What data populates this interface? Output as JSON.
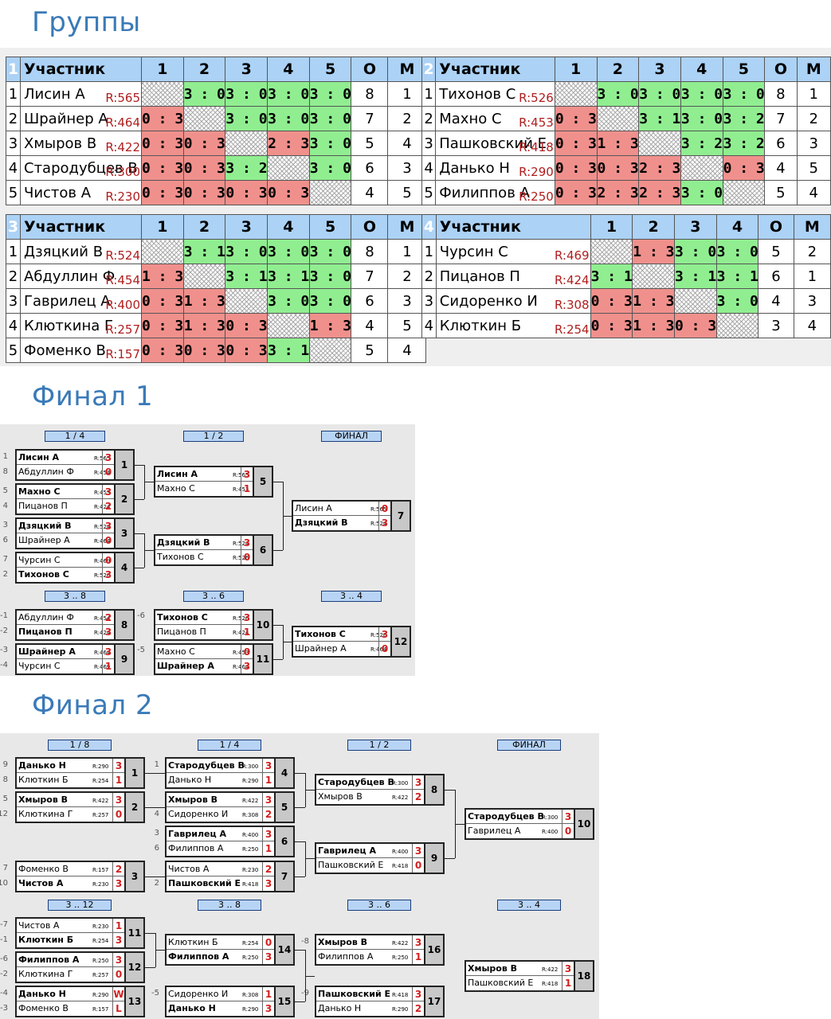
{
  "headings": {
    "groups": "Группы",
    "final1": "Финал 1",
    "final2": "Финал 2"
  },
  "groups": [
    {
      "num": "1",
      "header": [
        "Участник",
        "1",
        "2",
        "3",
        "4",
        "5",
        "О",
        "М"
      ],
      "rows": [
        {
          "n": "1",
          "name": "Лисин А",
          "r": "R:565",
          "cells": [
            "x",
            "3 : 0",
            "3 : 0",
            "3 : 0",
            "3 : 0"
          ],
          "o": "8",
          "m": "1"
        },
        {
          "n": "2",
          "name": "Шрайнер А",
          "r": "R:464",
          "cells": [
            "0 : 3",
            "x",
            "3 : 0",
            "3 : 0",
            "3 : 0"
          ],
          "o": "7",
          "m": "2"
        },
        {
          "n": "3",
          "name": "Хмыров В",
          "r": "R:422",
          "cells": [
            "0 : 3",
            "0 : 3",
            "x",
            "2 : 3",
            "3 : 0"
          ],
          "o": "5",
          "m": "4"
        },
        {
          "n": "4",
          "name": "Стародубцев В",
          "r": "R:300",
          "cells": [
            "0 : 3",
            "0 : 3",
            "3 : 2",
            "x",
            "3 : 0"
          ],
          "o": "6",
          "m": "3"
        },
        {
          "n": "5",
          "name": "Чистов А",
          "r": "R:230",
          "cells": [
            "0 : 3",
            "0 : 3",
            "0 : 3",
            "0 : 3",
            "x"
          ],
          "o": "4",
          "m": "5"
        }
      ]
    },
    {
      "num": "2",
      "header": [
        "Участник",
        "1",
        "2",
        "3",
        "4",
        "5",
        "О",
        "М"
      ],
      "rows": [
        {
          "n": "1",
          "name": "Тихонов С",
          "r": "R:526",
          "cells": [
            "x",
            "3 : 0",
            "3 : 0",
            "3 : 0",
            "3 : 0"
          ],
          "o": "8",
          "m": "1"
        },
        {
          "n": "2",
          "name": "Махно С",
          "r": "R:453",
          "cells": [
            "0 : 3",
            "x",
            "3 : 1",
            "3 : 0",
            "3 : 2"
          ],
          "o": "7",
          "m": "2"
        },
        {
          "n": "3",
          "name": "Пашковский Е",
          "r": "R:418",
          "cells": [
            "0 : 3",
            "1 : 3",
            "x",
            "3 : 2",
            "3 : 2"
          ],
          "o": "6",
          "m": "3"
        },
        {
          "n": "4",
          "name": "Данько Н",
          "r": "R:290",
          "cells": [
            "0 : 3",
            "0 : 3",
            "2 : 3",
            "x",
            "0 : 3"
          ],
          "o": "4",
          "m": "5"
        },
        {
          "n": "5",
          "name": "Филиппов А",
          "r": "R:250",
          "cells": [
            "0 : 3",
            "2 : 3",
            "2 : 3",
            "3 : 0",
            "x"
          ],
          "o": "5",
          "m": "4"
        }
      ]
    },
    {
      "num": "3",
      "header": [
        "Участник",
        "1",
        "2",
        "3",
        "4",
        "5",
        "О",
        "М"
      ],
      "rows": [
        {
          "n": "1",
          "name": "Дзяцкий В",
          "r": "R:524",
          "cells": [
            "x",
            "3 : 1",
            "3 : 0",
            "3 : 0",
            "3 : 0"
          ],
          "o": "8",
          "m": "1"
        },
        {
          "n": "2",
          "name": "Абдуллин Ф",
          "r": "R:454",
          "cells": [
            "1 : 3",
            "x",
            "3 : 1",
            "3 : 1",
            "3 : 0"
          ],
          "o": "7",
          "m": "2"
        },
        {
          "n": "3",
          "name": "Гаврилец А",
          "r": "R:400",
          "cells": [
            "0 : 3",
            "1 : 3",
            "x",
            "3 : 0",
            "3 : 0"
          ],
          "o": "6",
          "m": "3"
        },
        {
          "n": "4",
          "name": "Клюткина Г",
          "r": "R:257",
          "cells": [
            "0 : 3",
            "1 : 3",
            "0 : 3",
            "x",
            "1 : 3"
          ],
          "o": "4",
          "m": "5"
        },
        {
          "n": "5",
          "name": "Фоменко В",
          "r": "R:157",
          "cells": [
            "0 : 3",
            "0 : 3",
            "0 : 3",
            "3 : 1",
            "x"
          ],
          "o": "5",
          "m": "4"
        }
      ]
    },
    {
      "num": "4",
      "header": [
        "Участник",
        "1",
        "2",
        "3",
        "4",
        "О",
        "М"
      ],
      "rows": [
        {
          "n": "1",
          "name": "Чурсин С",
          "r": "R:469",
          "cells": [
            "x",
            "1 : 3",
            "3 : 0",
            "3 : 0"
          ],
          "o": "5",
          "m": "2"
        },
        {
          "n": "2",
          "name": "Пицанов П",
          "r": "R:424",
          "cells": [
            "3 : 1",
            "x",
            "3 : 1",
            "3 : 1"
          ],
          "o": "6",
          "m": "1"
        },
        {
          "n": "3",
          "name": "Сидоренко И",
          "r": "R:308",
          "cells": [
            "0 : 3",
            "1 : 3",
            "x",
            "3 : 0"
          ],
          "o": "4",
          "m": "3"
        },
        {
          "n": "4",
          "name": "Клюткин Б",
          "r": "R:254",
          "cells": [
            "0 : 3",
            "1 : 3",
            "0 : 3",
            "x"
          ],
          "o": "3",
          "m": "4"
        }
      ]
    }
  ],
  "final1": {
    "labels": [
      "1 / 4",
      "1 / 2",
      "ФИНАЛ",
      "3 .. 8",
      "3 .. 6",
      "3 .. 4"
    ],
    "seeds": [
      "1",
      "8",
      "5",
      "4",
      "3",
      "6",
      "7",
      "2",
      "-1",
      "-2",
      "-3",
      "-4",
      "-6",
      "-5"
    ],
    "matches": [
      {
        "id": "1",
        "p1": "Лисин А",
        "r1": "R:565",
        "s1": "3",
        "p2": "Абдуллин Ф",
        "r2": "R:454",
        "s2": "0",
        "w": 1
      },
      {
        "id": "2",
        "p1": "Махно С",
        "r1": "R:453",
        "s1": "3",
        "p2": "Пицанов П",
        "r2": "R:424",
        "s2": "2",
        "w": 1
      },
      {
        "id": "3",
        "p1": "Дзяцкий В",
        "r1": "R:524",
        "s1": "3",
        "p2": "Шрайнер А",
        "r2": "R:464",
        "s2": "0",
        "w": 1
      },
      {
        "id": "4",
        "p1": "Чурсин С",
        "r1": "R:469",
        "s1": "0",
        "p2": "Тихонов С",
        "r2": "R:526",
        "s2": "3",
        "w": 2
      },
      {
        "id": "5",
        "p1": "Лисин А",
        "r1": "R:565",
        "s1": "3",
        "p2": "Махно С",
        "r2": "R:453",
        "s2": "1",
        "w": 1
      },
      {
        "id": "6",
        "p1": "Дзяцкий В",
        "r1": "R:524",
        "s1": "3",
        "p2": "Тихонов С",
        "r2": "R:526",
        "s2": "0",
        "w": 1
      },
      {
        "id": "7",
        "p1": "Лисин А",
        "r1": "R:565",
        "s1": "0",
        "p2": "Дзяцкий В",
        "r2": "R:524",
        "s2": "3",
        "w": 2
      },
      {
        "id": "8",
        "p1": "Абдуллин Ф",
        "r1": "R:454",
        "s1": "2",
        "p2": "Пицанов П",
        "r2": "R:424",
        "s2": "3",
        "w": 2
      },
      {
        "id": "9",
        "p1": "Шрайнер А",
        "r1": "R:464",
        "s1": "3",
        "p2": "Чурсин С",
        "r2": "R:469",
        "s2": "1",
        "w": 1
      },
      {
        "id": "10",
        "p1": "Тихонов С",
        "r1": "R:526",
        "s1": "3",
        "p2": "Пицанов П",
        "r2": "R:424",
        "s2": "1",
        "w": 1
      },
      {
        "id": "11",
        "p1": "Махно С",
        "r1": "R:453",
        "s1": "0",
        "p2": "Шрайнер А",
        "r2": "R:464",
        "s2": "3",
        "w": 2
      },
      {
        "id": "12",
        "p1": "Тихонов С",
        "r1": "R:526",
        "s1": "3",
        "p2": "Шрайнер А",
        "r2": "R:464",
        "s2": "0",
        "w": 1
      }
    ]
  },
  "final2": {
    "labels": [
      "1 / 8",
      "1 / 4",
      "1 / 2",
      "ФИНАЛ",
      "3 .. 12",
      "3 .. 8",
      "3 .. 6",
      "3 .. 4"
    ],
    "seeds": [
      "9",
      "8",
      "5",
      "12",
      "1",
      "4",
      "3",
      "6",
      "7",
      "10",
      "2",
      "-7",
      "-1",
      "-6",
      "-2",
      "-4",
      "-3",
      "-8",
      "-5",
      "-9"
    ],
    "matches": [
      {
        "id": "1",
        "p1": "Данько Н",
        "r1": "R:290",
        "s1": "3",
        "p2": "Клюткин Б",
        "r2": "R:254",
        "s2": "1",
        "w": 1
      },
      {
        "id": "2",
        "p1": "Хмыров В",
        "r1": "R:422",
        "s1": "3",
        "p2": "Клюткина Г",
        "r2": "R:257",
        "s2": "0",
        "w": 1
      },
      {
        "id": "3",
        "p1": "Фоменко В",
        "r1": "R:157",
        "s1": "2",
        "p2": "Чистов А",
        "r2": "R:230",
        "s2": "3",
        "w": 2
      },
      {
        "id": "4",
        "p1": "Стародубцев В",
        "r1": "R:300",
        "s1": "3",
        "p2": "Данько Н",
        "r2": "R:290",
        "s2": "1",
        "w": 1
      },
      {
        "id": "5",
        "p1": "Хмыров В",
        "r1": "R:422",
        "s1": "3",
        "p2": "Сидоренко И",
        "r2": "R:308",
        "s2": "2",
        "w": 1
      },
      {
        "id": "6",
        "p1": "Гаврилец А",
        "r1": "R:400",
        "s1": "3",
        "p2": "Филиппов А",
        "r2": "R:250",
        "s2": "1",
        "w": 1
      },
      {
        "id": "7",
        "p1": "Чистов А",
        "r1": "R:230",
        "s1": "2",
        "p2": "Пашковский Е",
        "r2": "R:418",
        "s2": "3",
        "w": 2
      },
      {
        "id": "8",
        "p1": "Стародубцев В",
        "r1": "R:300",
        "s1": "3",
        "p2": "Хмыров В",
        "r2": "R:422",
        "s2": "2",
        "w": 1
      },
      {
        "id": "9",
        "p1": "Гаврилец А",
        "r1": "R:400",
        "s1": "3",
        "p2": "Пашковский Е",
        "r2": "R:418",
        "s2": "0",
        "w": 1
      },
      {
        "id": "10",
        "p1": "Стародубцев В",
        "r1": "R:300",
        "s1": "3",
        "p2": "Гаврилец А",
        "r2": "R:400",
        "s2": "0",
        "w": 1
      },
      {
        "id": "11",
        "p1": "Чистов А",
        "r1": "R:230",
        "s1": "1",
        "p2": "Клюткин Б",
        "r2": "R:254",
        "s2": "3",
        "w": 2
      },
      {
        "id": "12",
        "p1": "Филиппов А",
        "r1": "R:250",
        "s1": "3",
        "p2": "Клюткина Г",
        "r2": "R:257",
        "s2": "0",
        "w": 1
      },
      {
        "id": "13",
        "p1": "Данько Н",
        "r1": "R:290",
        "s1": "W",
        "p2": "Фоменко В",
        "r2": "R:157",
        "s2": "L",
        "w": 1
      },
      {
        "id": "14",
        "p1": "Клюткин Б",
        "r1": "R:254",
        "s1": "0",
        "p2": "Филиппов А",
        "r2": "R:250",
        "s2": "3",
        "w": 2
      },
      {
        "id": "15",
        "p1": "Сидоренко И",
        "r1": "R:308",
        "s1": "1",
        "p2": "Данько Н",
        "r2": "R:290",
        "s2": "3",
        "w": 2
      },
      {
        "id": "16",
        "p1": "Хмыров В",
        "r1": "R:422",
        "s1": "3",
        "p2": "Филиппов А",
        "r2": "R:250",
        "s2": "1",
        "w": 1
      },
      {
        "id": "17",
        "p1": "Пашковский Е",
        "r1": "R:418",
        "s1": "3",
        "p2": "Данько Н",
        "r2": "R:290",
        "s2": "2",
        "w": 1
      },
      {
        "id": "18",
        "p1": "Хмыров В",
        "r1": "R:422",
        "s1": "3",
        "p2": "Пашковский Е",
        "r2": "R:418",
        "s2": "1",
        "w": 1
      }
    ]
  }
}
